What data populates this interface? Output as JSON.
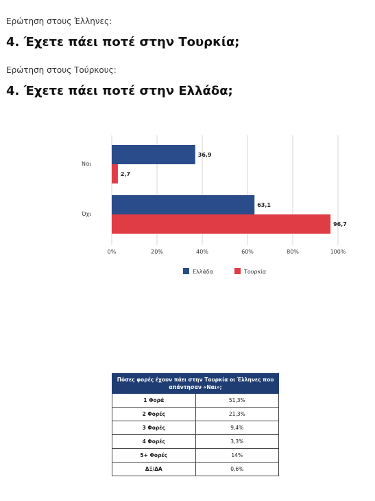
{
  "header": {
    "intro_greeks": "Ερώτηση στους Έλληνες:",
    "question_greeks": "4. Έχετε πάει ποτέ στην Τουρκία;",
    "intro_turks": "Ερώτηση στους Τούρκους:",
    "question_turks": "4. Έχετε πάει ποτέ στην Ελλάδα;"
  },
  "chart_data": {
    "type": "bar",
    "orientation": "horizontal",
    "categories": [
      "Ναι",
      "Όχι"
    ],
    "series": [
      {
        "name": "Ελλάδα",
        "color": "#2b4c8a",
        "values": [
          36.9,
          63.1
        ],
        "labels": [
          "36,9",
          "63,1"
        ]
      },
      {
        "name": "Τουρκία",
        "color": "#e03c45",
        "values": [
          2.7,
          96.7
        ],
        "labels": [
          "2,7",
          "96,7"
        ]
      }
    ],
    "xlim": [
      0,
      100
    ],
    "xticks": [
      "0%",
      "20%",
      "40%",
      "60%",
      "80%",
      "100%"
    ],
    "grid": "vertical",
    "legend": "bottom"
  },
  "table": {
    "header": "Πόσες φορές έχουν πάει στην Τουρκία οι Έλληνες που απάντησαν «Ναι»;",
    "rows": [
      {
        "label": "1 Φορά",
        "value": "51,3%"
      },
      {
        "label": "2 Φορές",
        "value": "21,3%"
      },
      {
        "label": "3 Φορές",
        "value": "9,4%"
      },
      {
        "label": "4 Φορές",
        "value": "3,3%"
      },
      {
        "label": "5+ Φορές",
        "value": "14%"
      },
      {
        "label": "ΔΞ/ΔΑ",
        "value": "0,6%"
      }
    ]
  }
}
